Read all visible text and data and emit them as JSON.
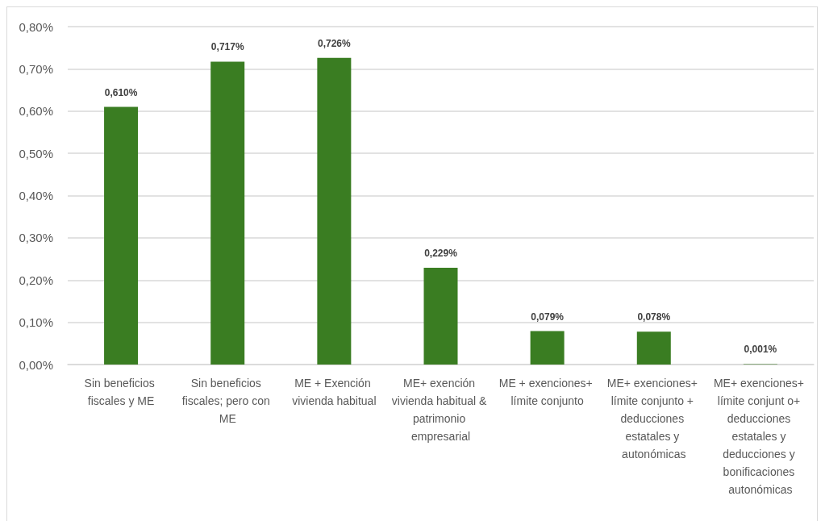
{
  "chart_data": {
    "type": "bar",
    "categories": [
      "Sin beneficios fiscales y ME",
      "Sin beneficios fiscales; pero con ME",
      "ME + Exención vivienda habitual",
      "ME+ exención vivienda habitual & patrimonio empresarial",
      "ME + exenciones+ límite conjunto",
      "ME+ exenciones+ límite conjunto + deducciones estatales y autonómicas",
      "ME+ exenciones+ límite conjunt o+ deducciones estatales y deducciones y bonificaciones autonómicas"
    ],
    "values": [
      0.61,
      0.717,
      0.726,
      0.229,
      0.079,
      0.078,
      0.001
    ],
    "value_labels": [
      "0,610%",
      "0,717%",
      "0,726%",
      "0,229%",
      "0,079%",
      "0,078%",
      "0,001%"
    ],
    "color": "#3a7d22",
    "ylim": [
      0,
      0.8
    ],
    "yticks": [
      {
        "value": 0,
        "label": "0,00%"
      },
      {
        "value": 0.1,
        "label": "0,10%"
      },
      {
        "value": 0.2,
        "label": "0,20%"
      },
      {
        "value": 0.3,
        "label": "0,30%"
      },
      {
        "value": 0.4,
        "label": "0,40%"
      },
      {
        "value": 0.5,
        "label": "0,50%"
      },
      {
        "value": 0.6,
        "label": "0,60%"
      },
      {
        "value": 0.7,
        "label": "0,70%"
      },
      {
        "value": 0.8,
        "label": "0,80%"
      }
    ],
    "grid": "y"
  }
}
